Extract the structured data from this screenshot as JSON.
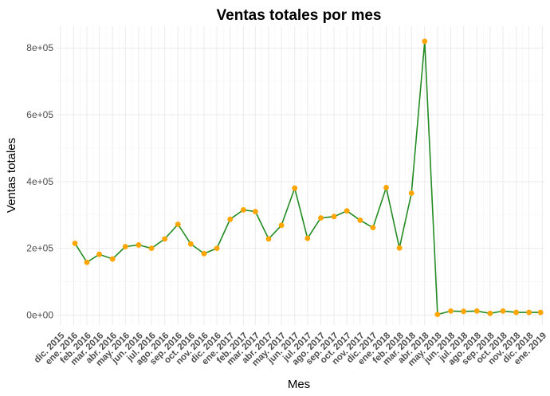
{
  "chart_data": {
    "type": "line",
    "title": "Ventas totales por mes",
    "xlabel": "Mes",
    "ylabel": "Ventas totales",
    "x_tick_labels": [
      "dic. 2015",
      "ene. 2016",
      "feb. 2016",
      "mar. 2016",
      "abr. 2016",
      "may. 2016",
      "jun. 2016",
      "jul. 2016",
      "ago. 2016",
      "sep. 2016",
      "oct. 2016",
      "nov. 2016",
      "dic. 2016",
      "ene. 2017",
      "feb. 2017",
      "mar. 2017",
      "abr. 2017",
      "may. 2017",
      "jun. 2017",
      "jul. 2017",
      "ago. 2017",
      "sep. 2017",
      "oct. 2017",
      "nov. 2017",
      "dic. 2017",
      "ene. 2018",
      "feb. 2018",
      "mar. 2018",
      "abr. 2018",
      "may. 2018",
      "jun. 2018",
      "jul. 2018",
      "ago. 2018",
      "sep. 2018",
      "oct. 2018",
      "nov. 2018",
      "dic. 2018",
      "ene. 2019"
    ],
    "y_tick_labels": [
      "0e+00",
      "2e+05",
      "4e+05",
      "6e+05",
      "8e+05"
    ],
    "y_ticks": [
      0,
      200000,
      400000,
      600000,
      800000
    ],
    "ylim": [
      -30000,
      865000
    ],
    "xlim": [
      "2015-11-24",
      "2019-01-06"
    ],
    "grid": true,
    "legend": "none",
    "colors": {
      "line": "#228B22",
      "points": "#FFA500"
    },
    "series": [
      {
        "x": [
          "2016-01-04",
          "2016-02-01",
          "2016-03-01",
          "2016-04-01",
          "2016-05-01",
          "2016-06-01",
          "2016-07-01",
          "2016-08-01",
          "2016-09-01",
          "2016-10-01",
          "2016-11-01",
          "2016-12-01",
          "2017-01-01",
          "2017-02-01",
          "2017-03-01",
          "2017-04-01",
          "2017-05-01",
          "2017-06-01",
          "2017-07-01",
          "2017-08-01",
          "2017-09-01",
          "2017-10-01",
          "2017-11-01",
          "2017-12-01",
          "2018-01-01",
          "2018-02-01",
          "2018-03-01",
          "2018-04-01",
          "2018-05-01",
          "2018-06-01",
          "2018-07-01",
          "2018-08-01",
          "2018-09-01",
          "2018-10-01",
          "2018-11-01",
          "2018-12-01",
          "2018-12-28"
        ],
        "values": [
          215000,
          158000,
          182000,
          168000,
          205000,
          210000,
          200000,
          228000,
          272000,
          213000,
          184000,
          200000,
          287000,
          315000,
          310000,
          228000,
          269000,
          380000,
          230000,
          291000,
          295000,
          312000,
          284000,
          262000,
          382000,
          201000,
          365000,
          820000,
          2000,
          12000,
          11000,
          12000,
          5000,
          12000,
          8000,
          8000,
          8000
        ]
      }
    ]
  }
}
